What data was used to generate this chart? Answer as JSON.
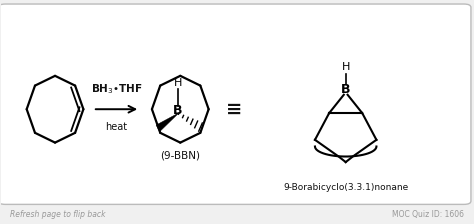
{
  "bg_color": "#f0f0f0",
  "box_color": "#ffffff",
  "box_edge_color": "#bbbbbb",
  "text_color": "#111111",
  "footer_color": "#999999",
  "reagent_text": "BH$_3$•THF",
  "reagent_subtext": "heat",
  "product_label": "(9-BBN)",
  "full_name": "9-Borabicyclo(3.3.1)nonane",
  "footer_left": "Refresh page to flip back",
  "footer_right": "MOC Quiz ID: 1606",
  "equiv_symbol": "≡"
}
